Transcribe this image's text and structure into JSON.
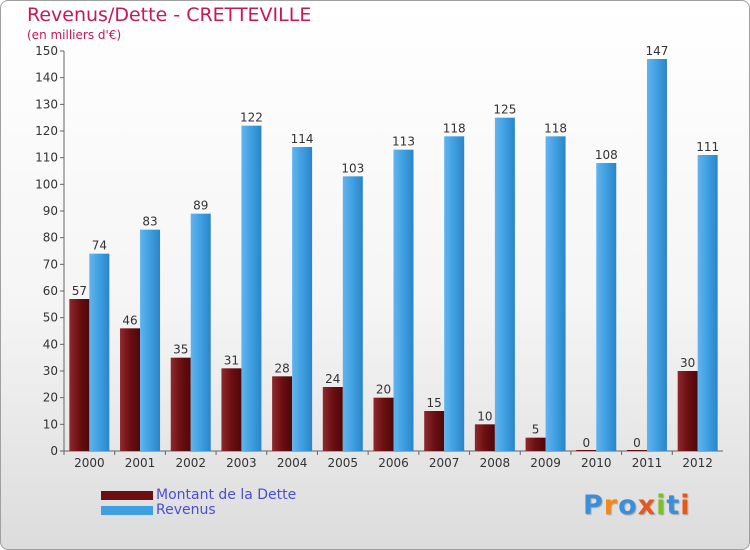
{
  "header": {
    "title": "Revenus/Dette - CRETTEVILLE",
    "subtitle": "(en milliers d'€)"
  },
  "legend": {
    "items": [
      {
        "label": "Montant de la Dette",
        "color": "#6b0f12"
      },
      {
        "label": "Revenus",
        "color": "#3f9fe0"
      }
    ]
  },
  "logo": {
    "text": "Proxiti",
    "letters": [
      "P",
      "r",
      "o",
      "x",
      "i",
      "t",
      "i"
    ],
    "colors": [
      "#3b8fd8",
      "#f08a1c",
      "#3b8fd8",
      "#e4571d",
      "#7bbf2a",
      "#3b8fd8",
      "#e4571d"
    ]
  },
  "chart_data": {
    "type": "bar",
    "title": "Revenus/Dette - CRETTEVILLE",
    "subtitle": "(en milliers d'€)",
    "categories": [
      "2000",
      "2001",
      "2002",
      "2003",
      "2004",
      "2005",
      "2006",
      "2007",
      "2008",
      "2009",
      "2010",
      "2011",
      "2012"
    ],
    "series": [
      {
        "name": "Montant de la Dette",
        "color": "#6b0f12",
        "values": [
          57,
          46,
          35,
          31,
          28,
          24,
          20,
          15,
          10,
          5,
          0,
          0,
          30
        ]
      },
      {
        "name": "Revenus",
        "color": "#3f9fe0",
        "values": [
          74,
          83,
          89,
          122,
          114,
          103,
          113,
          118,
          125,
          118,
          108,
          147,
          111
        ]
      }
    ],
    "ylim": [
      0,
      150
    ],
    "yticks": [
      0,
      10,
      20,
      30,
      40,
      50,
      60,
      70,
      80,
      90,
      100,
      110,
      120,
      130,
      140,
      150
    ],
    "grid": false,
    "legend_position": "bottom-left",
    "xlabel": "",
    "ylabel": ""
  }
}
